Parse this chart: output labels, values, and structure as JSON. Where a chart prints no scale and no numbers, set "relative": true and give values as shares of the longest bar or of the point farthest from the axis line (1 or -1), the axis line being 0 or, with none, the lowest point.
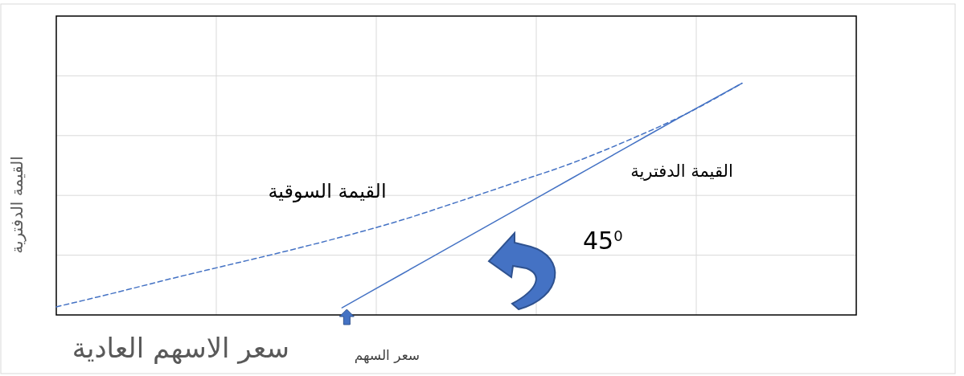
{
  "chart_data": {
    "type": "line",
    "relative": true,
    "xlabel": "سعر الاسهم العادية",
    "ylabel": "القيمة الدفترية",
    "categories": [
      null,
      null,
      null,
      null,
      null,
      null,
      null,
      null,
      null,
      null,
      null,
      null,
      null,
      null,
      null
    ],
    "series": [
      {
        "name": "القيمة السوقية",
        "color": "#4472c4",
        "line_style": "dashed",
        "values": [
          0.035,
          0.094,
          0.156,
          0.215,
          0.274,
          0.337,
          0.406,
          0.486,
          0.569,
          0.653,
          0.753,
          0.865,
          1.0,
          null,
          null
        ]
      },
      {
        "name": "القيمة الدفترية",
        "color": "#4472c4",
        "line_style": "solid",
        "values": [
          null,
          null,
          null,
          null,
          null,
          0.031,
          0.17,
          0.309,
          0.448,
          0.587,
          0.726,
          0.865,
          1.0,
          null,
          null
        ]
      }
    ],
    "annotations": [
      "45$^{0}$",
      "سعر السهم"
    ],
    "grid": true,
    "legend": false,
    "marker": "none"
  }
}
